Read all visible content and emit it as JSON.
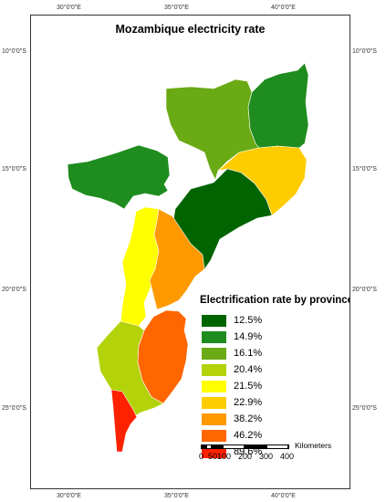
{
  "map": {
    "title": "Mozambique electricity rate",
    "longitude_ticks": [
      "30°0'0\"E",
      "35°0'0\"E",
      "40°0'0\"E"
    ],
    "latitude_ticks": [
      "10°0'0\"S",
      "15°0'0\"S",
      "20°0'0\"S",
      "25°0'0\"S"
    ]
  },
  "legend": {
    "title": "Electrification rate by province",
    "items": [
      {
        "label": "12.5%",
        "color": "#006400"
      },
      {
        "label": "14.9%",
        "color": "#1e8c1e"
      },
      {
        "label": "16.1%",
        "color": "#6aaa14"
      },
      {
        "label": "20.4%",
        "color": "#b3d20a"
      },
      {
        "label": "21.5%",
        "color": "#ffff00"
      },
      {
        "label": "22.9%",
        "color": "#ffcc00"
      },
      {
        "label": "38.2%",
        "color": "#ff9900"
      },
      {
        "label": "46.2%",
        "color": "#ff6600"
      },
      {
        "label": "89.6%",
        "color": "#ff2200"
      }
    ]
  },
  "scale_bar": {
    "labels": [
      "0",
      "50",
      "100",
      "200",
      "300",
      "400"
    ],
    "units": "Kilometers"
  }
}
